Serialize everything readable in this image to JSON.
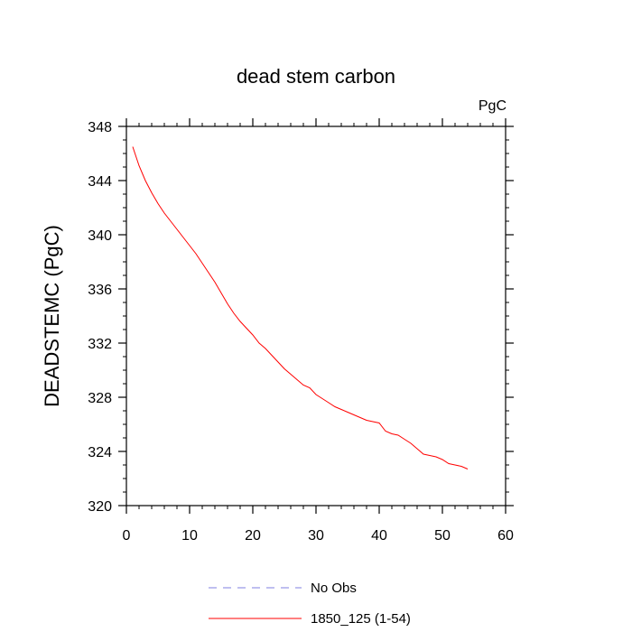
{
  "chart_data": {
    "type": "line",
    "title": "dead stem carbon",
    "units": "PgC",
    "xlabel": "",
    "ylabel": "DEADSTEMC  (PgC)",
    "xlim": [
      0,
      60
    ],
    "ylim": [
      320,
      348
    ],
    "xticks": [
      0,
      10,
      20,
      30,
      40,
      50,
      60
    ],
    "yticks": [
      320,
      324,
      328,
      332,
      336,
      340,
      344,
      348
    ],
    "legend_position": "bottom",
    "series": [
      {
        "name": "No Obs",
        "color": "#7f7fe0",
        "dashed": true,
        "x": [],
        "y": []
      },
      {
        "name": "1850_125 (1-54)",
        "color": "#ff0000",
        "dashed": false,
        "x": [
          1,
          2,
          3,
          4,
          5,
          6,
          7,
          8,
          9,
          10,
          11,
          12,
          13,
          14,
          15,
          16,
          17,
          18,
          19,
          20,
          21,
          22,
          23,
          24,
          25,
          26,
          27,
          28,
          29,
          30,
          31,
          32,
          33,
          34,
          35,
          36,
          37,
          38,
          39,
          40,
          41,
          42,
          43,
          44,
          45,
          46,
          47,
          48,
          49,
          50,
          51,
          52,
          53,
          54
        ],
        "y": [
          346.5,
          345.1,
          344.0,
          343.1,
          342.3,
          341.6,
          341.0,
          340.4,
          339.8,
          339.2,
          338.6,
          337.9,
          337.2,
          336.5,
          335.7,
          334.9,
          334.2,
          333.6,
          333.1,
          332.6,
          332.0,
          331.6,
          331.1,
          330.6,
          330.1,
          329.7,
          329.3,
          328.9,
          328.7,
          328.2,
          327.9,
          327.6,
          327.3,
          327.1,
          326.9,
          326.7,
          326.5,
          326.3,
          326.2,
          326.1,
          325.5,
          325.3,
          325.2,
          324.9,
          324.6,
          324.2,
          323.8,
          323.7,
          323.6,
          323.4,
          323.1,
          323.0,
          322.9,
          322.7
        ]
      }
    ]
  }
}
